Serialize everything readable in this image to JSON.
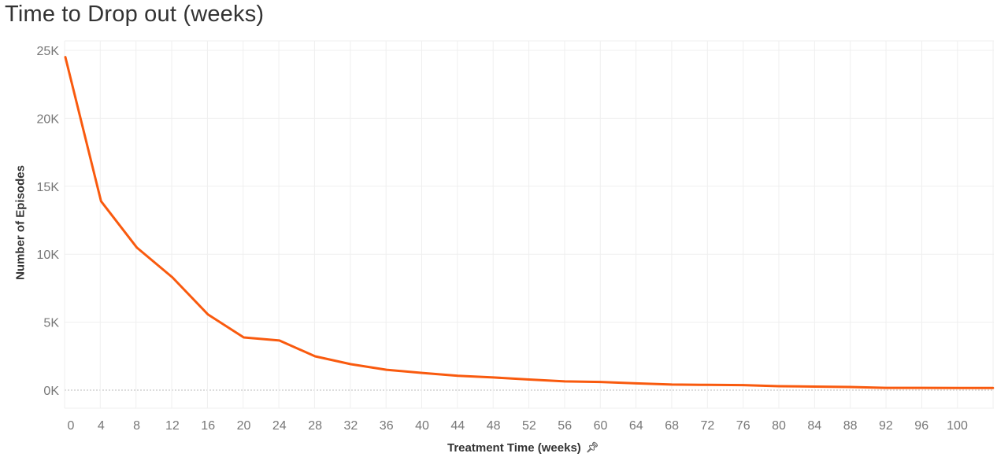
{
  "header": {
    "title": "Time to Drop out (weeks)"
  },
  "axes": {
    "y_label": "Number of Episodes",
    "x_label": "Treatment Time (weeks)",
    "x_pin_icon": "pin-icon"
  },
  "colors": {
    "line": "#F95A0E",
    "grid": "#EFEFEF",
    "zero_line": "#BBBBBB",
    "tick_text": "#777777"
  },
  "chart_data": {
    "type": "line",
    "title": "Time to Drop out (weeks)",
    "xlabel": "Treatment Time (weeks)",
    "ylabel": "Number of Episodes",
    "x_ticks": [
      0,
      4,
      8,
      12,
      16,
      20,
      24,
      28,
      32,
      36,
      40,
      44,
      48,
      52,
      56,
      60,
      64,
      68,
      72,
      76,
      80,
      84,
      88,
      92,
      96,
      100
    ],
    "y_ticks": [
      "0K",
      "5K",
      "10K",
      "15K",
      "20K",
      "25K"
    ],
    "ylim": [
      0,
      25000
    ],
    "xlim": [
      0,
      104
    ],
    "grid": true,
    "series": [
      {
        "name": "Number of Episodes",
        "x": [
          0,
          4,
          8,
          12,
          16,
          20,
          24,
          28,
          32,
          36,
          40,
          44,
          48,
          52,
          56,
          60,
          64,
          68,
          72,
          76,
          80,
          84,
          88,
          92,
          96,
          100,
          104
        ],
        "values": [
          24500,
          13900,
          10500,
          8300,
          5560,
          3880,
          3650,
          2490,
          1910,
          1500,
          1270,
          1060,
          930,
          780,
          640,
          600,
          500,
          410,
          390,
          370,
          290,
          260,
          230,
          170,
          170,
          160,
          160
        ]
      }
    ]
  }
}
